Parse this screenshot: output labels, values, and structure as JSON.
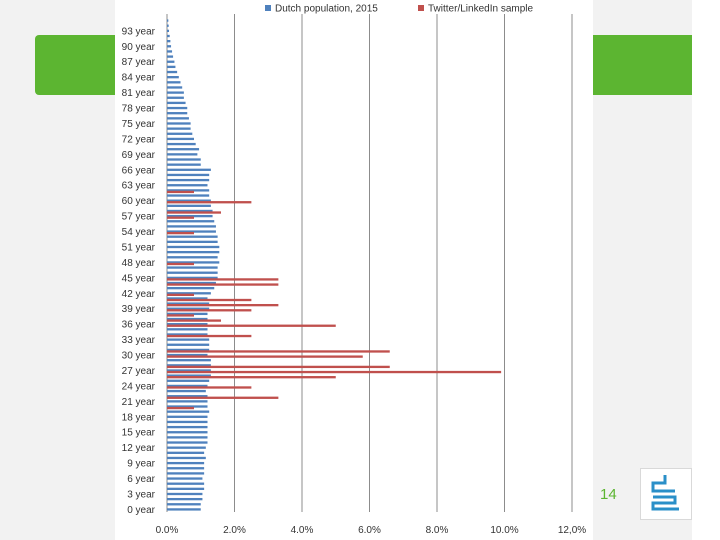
{
  "slide": {
    "page_number": "14",
    "accent_color": "#5cb531"
  },
  "chart_data": {
    "type": "bar",
    "orientation": "horizontal",
    "title": "",
    "xlabel": "",
    "ylabel": "",
    "xlim": [
      0,
      12
    ],
    "x_ticks": [
      "0.0%",
      "2.0%",
      "4.0%",
      "6.0%",
      "8.0%",
      "10.0%",
      "12,0%"
    ],
    "x_tick_values": [
      0,
      2,
      4,
      6,
      8,
      10,
      12
    ],
    "y_tick_labels": [
      "0 year",
      "3 year",
      "6 year",
      "9 year",
      "12 year",
      "15 year",
      "18 year",
      "21 year",
      "24 year",
      "27 year",
      "30 year",
      "33 year",
      "36 year",
      "39 year",
      "42 year",
      "45 year",
      "48 year",
      "51 year",
      "54 year",
      "57 year",
      "60 year",
      "63 year",
      "66 year",
      "69 year",
      "72 year",
      "75 year",
      "78 year",
      "81 year",
      "84 year",
      "87 year",
      "90 year",
      "93 year"
    ],
    "y_tick_values": [
      0,
      3,
      6,
      9,
      12,
      15,
      18,
      21,
      24,
      27,
      30,
      33,
      36,
      39,
      42,
      45,
      48,
      51,
      54,
      57,
      60,
      63,
      66,
      69,
      72,
      75,
      78,
      81,
      84,
      87,
      90,
      93
    ],
    "grid": true,
    "legend_position": "top",
    "series": [
      {
        "name": "Dutch population, 2015",
        "color": "#4f81bd",
        "age_start": 0,
        "values": [
          1.0,
          1.0,
          1.05,
          1.05,
          1.1,
          1.1,
          1.05,
          1.1,
          1.1,
          1.1,
          1.15,
          1.1,
          1.15,
          1.2,
          1.2,
          1.2,
          1.2,
          1.2,
          1.2,
          1.25,
          1.2,
          1.2,
          1.2,
          1.15,
          1.2,
          1.25,
          1.3,
          1.3,
          1.3,
          1.3,
          1.2,
          1.25,
          1.25,
          1.25,
          1.2,
          1.2,
          1.2,
          1.2,
          1.2,
          1.25,
          1.25,
          1.2,
          1.3,
          1.4,
          1.45,
          1.5,
          1.5,
          1.5,
          1.55,
          1.5,
          1.55,
          1.55,
          1.5,
          1.5,
          1.45,
          1.45,
          1.4,
          1.35,
          1.35,
          1.3,
          1.3,
          1.25,
          1.25,
          1.2,
          1.25,
          1.25,
          1.3,
          1.0,
          1.0,
          0.9,
          0.95,
          0.85,
          0.8,
          0.75,
          0.7,
          0.7,
          0.65,
          0.6,
          0.6,
          0.55,
          0.5,
          0.5,
          0.45,
          0.4,
          0.35,
          0.3,
          0.25,
          0.22,
          0.18,
          0.15,
          0.12,
          0.1,
          0.08,
          0.06,
          0.05,
          0.04
        ]
      },
      {
        "name": "Twitter/LinkedIn sample",
        "color": "#c0504d",
        "values": {
          "20": 0.8,
          "22": 3.3,
          "24": 2.5,
          "26": 5.0,
          "27": 9.9,
          "28": 6.6,
          "30": 5.8,
          "31": 6.6,
          "34": 2.5,
          "36": 5.0,
          "37": 1.6,
          "38": 0.8,
          "39": 2.5,
          "40": 3.3,
          "41": 2.5,
          "42": 0.8,
          "44": 3.3,
          "45": 3.3,
          "48": 0.8,
          "54": 0.8,
          "57": 0.8,
          "58": 1.6,
          "60": 2.5,
          "62": 0.8
        }
      }
    ]
  }
}
